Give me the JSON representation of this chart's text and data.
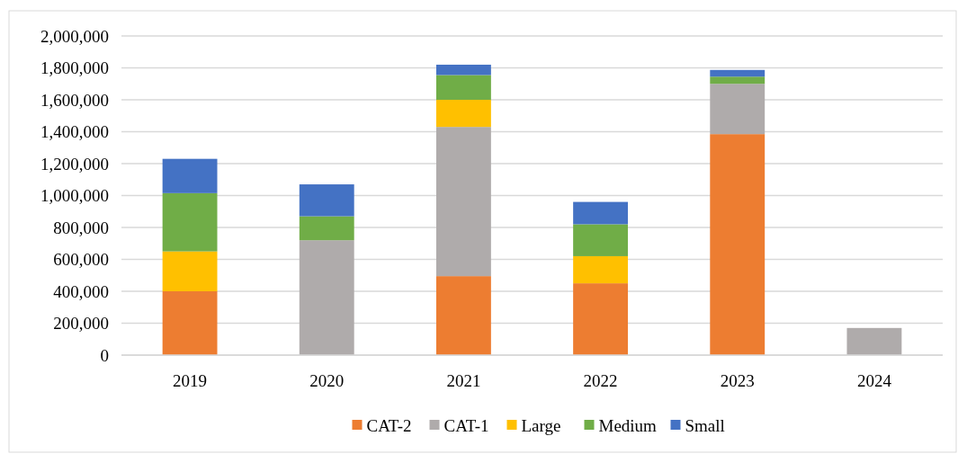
{
  "chart_data": {
    "type": "bar",
    "stacked": true,
    "categories": [
      "2019",
      "2020",
      "2021",
      "2022",
      "2023",
      "2024"
    ],
    "series": [
      {
        "name": "CAT-2",
        "color": "#ed7d31",
        "values": [
          400000,
          0,
          495000,
          450000,
          1385000,
          0
        ]
      },
      {
        "name": "CAT-1",
        "color": "#afabab",
        "values": [
          0,
          720000,
          935000,
          0,
          315000,
          170000
        ]
      },
      {
        "name": "Large",
        "color": "#ffc000",
        "values": [
          250000,
          0,
          170000,
          170000,
          0,
          0
        ]
      },
      {
        "name": "Medium",
        "color": "#70ad47",
        "values": [
          365000,
          150000,
          155000,
          200000,
          45000,
          0
        ]
      },
      {
        "name": "Small",
        "color": "#4472c4",
        "values": [
          215000,
          200000,
          65000,
          140000,
          42000,
          0
        ]
      }
    ],
    "ylim": [
      0,
      2000000
    ],
    "yticks": [
      {
        "value": 0,
        "label": "0"
      },
      {
        "value": 200000,
        "label": "200,000"
      },
      {
        "value": 400000,
        "label": "400,000"
      },
      {
        "value": 600000,
        "label": "600,000"
      },
      {
        "value": 800000,
        "label": "800,000"
      },
      {
        "value": 1000000,
        "label": "1,000,000"
      },
      {
        "value": 1200000,
        "label": "1,200,000"
      },
      {
        "value": 1400000,
        "label": "1,400,000"
      },
      {
        "value": 1600000,
        "label": "1,600,000"
      },
      {
        "value": 1800000,
        "label": "1,800,000"
      },
      {
        "value": 2000000,
        "label": "2,000,000"
      }
    ],
    "grid": "y",
    "legend": "bottom"
  }
}
